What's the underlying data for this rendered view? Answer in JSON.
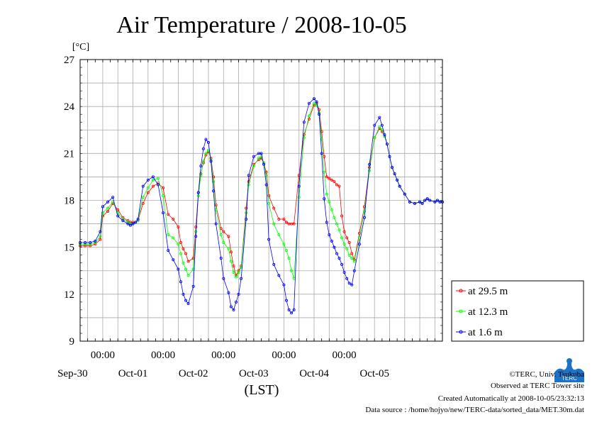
{
  "chart_data": {
    "type": "line",
    "title": "Air Temperature / 2008-10-05",
    "ylabel": "[°C]",
    "xlabel": "(LST)",
    "ylim": [
      9,
      27
    ],
    "yticks": [
      9,
      12,
      15,
      18,
      21,
      24,
      27
    ],
    "x_time_ticks": [
      "00:00",
      "00:00",
      "00:00",
      "00:00",
      "00:00"
    ],
    "x_date_ticks": [
      "Sep-30",
      "Oct-01",
      "Oct-02",
      "Oct-03",
      "Oct-04",
      "Oct-05"
    ],
    "x_hours_range": [
      -9,
      135
    ],
    "grid": true,
    "legend_placement": "right",
    "series": [
      {
        "name": "at 29.5 m",
        "color": "#ff0000",
        "x": [
          -9,
          -7,
          -5,
          -3,
          -1,
          0,
          2,
          4,
          6,
          8,
          10,
          11,
          12,
          13,
          14,
          16,
          18,
          20,
          22,
          24,
          26,
          28,
          30,
          31,
          32,
          33,
          34,
          36,
          37,
          38,
          39,
          40,
          41,
          42,
          43,
          44,
          45,
          47,
          48,
          50,
          51,
          52,
          53,
          54,
          55,
          57,
          58,
          60,
          62,
          63,
          64,
          65,
          66,
          68,
          70,
          72,
          73,
          74,
          75,
          76,
          78,
          80,
          82,
          84,
          85,
          86,
          87,
          88,
          89,
          90,
          91,
          92,
          93,
          94,
          95,
          96,
          97,
          98,
          99,
          100,
          102,
          104,
          106,
          108,
          110,
          111,
          112,
          113,
          114,
          115,
          116,
          117,
          118,
          120,
          122,
          124,
          126,
          127,
          128,
          129,
          130,
          132,
          133,
          134,
          135
        ],
        "y": [
          15.1,
          15.1,
          15.1,
          15.2,
          15.5,
          17.0,
          17.3,
          17.8,
          17.4,
          16.9,
          16.7,
          16.6,
          16.6,
          16.6,
          16.7,
          17.8,
          18.5,
          18.9,
          19.1,
          18.8,
          17.1,
          16.8,
          16.3,
          15.3,
          14.9,
          14.6,
          14.1,
          14.3,
          16.3,
          18.5,
          19.7,
          20.4,
          20.9,
          21.1,
          20.7,
          19.5,
          17.7,
          16.2,
          16.0,
          15.7,
          14.7,
          13.8,
          13.2,
          13.5,
          13.8,
          17.5,
          19.2,
          20.3,
          20.6,
          20.7,
          20.4,
          19.8,
          18.3,
          17.5,
          16.8,
          16.8,
          16.6,
          16.5,
          16.5,
          16.5,
          19.6,
          22.2,
          23.2,
          24.1,
          24.2,
          23.8,
          22.4,
          20.8,
          19.5,
          19.4,
          19.3,
          19.2,
          19.0,
          18.9,
          17.0,
          16.0,
          15.6,
          15.3,
          14.6,
          14.2,
          15.9,
          17.6,
          20.1,
          22.0,
          22.6,
          22.4,
          22.1,
          21.6,
          20.8,
          20.1,
          19.7,
          19.3,
          18.9,
          18.4,
          17.9,
          17.8,
          17.9,
          17.8,
          18.0,
          18.1,
          18.0,
          17.9,
          18.0,
          17.9,
          17.9
        ]
      },
      {
        "name": "at 12.3 m",
        "color": "#00ff00",
        "x": [
          -9,
          -7,
          -5,
          -3,
          -1,
          0,
          2,
          4,
          6,
          8,
          10,
          11,
          12,
          13,
          14,
          16,
          18,
          20,
          22,
          24,
          26,
          28,
          30,
          31,
          32,
          33,
          34,
          36,
          37,
          38,
          39,
          40,
          41,
          42,
          43,
          44,
          45,
          47,
          48,
          50,
          51,
          52,
          53,
          54,
          55,
          57,
          58,
          60,
          62,
          63,
          64,
          65,
          66,
          68,
          70,
          72,
          73,
          74,
          75,
          76,
          78,
          80,
          82,
          84,
          85,
          86,
          87,
          88,
          89,
          90,
          91,
          92,
          93,
          94,
          95,
          96,
          97,
          98,
          99,
          100,
          102,
          104,
          106,
          108,
          110,
          111,
          112,
          113,
          114,
          115,
          116,
          117,
          118,
          120,
          122,
          124,
          126,
          127,
          128,
          129,
          130,
          132,
          133,
          134,
          135
        ],
        "y": [
          15.2,
          15.2,
          15.2,
          15.3,
          15.7,
          17.2,
          17.5,
          17.9,
          17.2,
          16.8,
          16.6,
          16.5,
          16.5,
          16.6,
          16.7,
          18.2,
          18.8,
          19.3,
          19.4,
          18.3,
          15.8,
          15.6,
          15.2,
          14.6,
          14.0,
          13.6,
          13.2,
          13.6,
          16.0,
          18.3,
          19.6,
          20.5,
          21.0,
          21.2,
          20.6,
          19.2,
          17.4,
          15.8,
          15.3,
          14.9,
          14.1,
          13.4,
          13.1,
          13.4,
          13.7,
          17.2,
          19.0,
          20.2,
          20.7,
          20.8,
          20.4,
          19.6,
          17.8,
          16.5,
          15.8,
          15.2,
          14.8,
          14.3,
          13.5,
          13.0,
          18.2,
          22.0,
          23.4,
          24.2,
          24.1,
          23.6,
          21.9,
          19.8,
          18.4,
          17.9,
          17.4,
          16.9,
          16.5,
          16.1,
          15.6,
          15.2,
          14.9,
          14.5,
          14.3,
          14.1,
          15.6,
          17.3,
          19.9,
          22.0,
          22.7,
          22.5,
          22.1,
          21.6,
          20.8,
          20.1,
          19.7,
          19.3,
          18.9,
          18.4,
          17.9,
          17.8,
          17.9,
          17.8,
          18.0,
          18.1,
          18.0,
          17.9,
          18.0,
          17.9,
          17.9
        ]
      },
      {
        "name": "at 1.6 m",
        "color": "#0000ff",
        "x": [
          -9,
          -7,
          -5,
          -3,
          -1,
          0,
          2,
          4,
          6,
          8,
          10,
          11,
          12,
          13,
          14,
          16,
          18,
          20,
          22,
          24,
          26,
          28,
          30,
          31,
          32,
          33,
          34,
          36,
          37,
          38,
          39,
          40,
          41,
          42,
          43,
          44,
          45,
          47,
          48,
          50,
          51,
          52,
          53,
          54,
          55,
          57,
          58,
          60,
          62,
          63,
          64,
          65,
          66,
          68,
          70,
          72,
          73,
          74,
          75,
          76,
          78,
          80,
          82,
          84,
          85,
          86,
          87,
          88,
          89,
          90,
          91,
          92,
          93,
          94,
          95,
          96,
          97,
          98,
          99,
          100,
          102,
          104,
          106,
          108,
          110,
          111,
          112,
          113,
          114,
          115,
          116,
          117,
          118,
          120,
          122,
          124,
          126,
          127,
          128,
          129,
          130,
          132,
          133,
          134,
          135
        ],
        "y": [
          15.3,
          15.3,
          15.3,
          15.4,
          16.0,
          17.6,
          17.9,
          18.2,
          17.0,
          16.7,
          16.5,
          16.4,
          16.5,
          16.6,
          16.8,
          18.9,
          19.3,
          19.5,
          19.0,
          17.2,
          14.8,
          14.2,
          13.6,
          12.8,
          12.0,
          11.6,
          11.4,
          12.5,
          15.7,
          18.5,
          20.2,
          21.3,
          21.9,
          21.7,
          20.5,
          18.6,
          16.5,
          14.3,
          13.0,
          12.1,
          11.2,
          11.0,
          11.5,
          12.0,
          13.0,
          16.8,
          19.6,
          20.8,
          21.0,
          21.0,
          20.3,
          19.0,
          15.5,
          13.9,
          13.2,
          12.6,
          11.6,
          11.0,
          10.8,
          11.0,
          18.9,
          23.0,
          24.2,
          24.5,
          24.3,
          23.5,
          21.0,
          18.1,
          16.6,
          15.8,
          15.4,
          15.0,
          14.6,
          14.3,
          13.9,
          13.4,
          13.0,
          12.7,
          12.6,
          13.5,
          15.2,
          16.9,
          20.3,
          22.8,
          23.3,
          22.8,
          22.2,
          21.6,
          20.8,
          20.1,
          19.7,
          19.3,
          18.9,
          18.4,
          17.9,
          17.8,
          17.9,
          17.8,
          18.0,
          18.1,
          18.0,
          17.9,
          18.0,
          17.9,
          17.9
        ]
      }
    ]
  },
  "footer": {
    "copyright": "©TERC, Univ. Tsukuba",
    "site": "Observed at TERC Tower site",
    "created": "Created Automatically at 2008-10-05/23:32:13",
    "source": "Data source : /home/hojyo/new/TERC-data/sorted_data/MET.30m.dat"
  },
  "logo": {
    "text": "TERC"
  }
}
